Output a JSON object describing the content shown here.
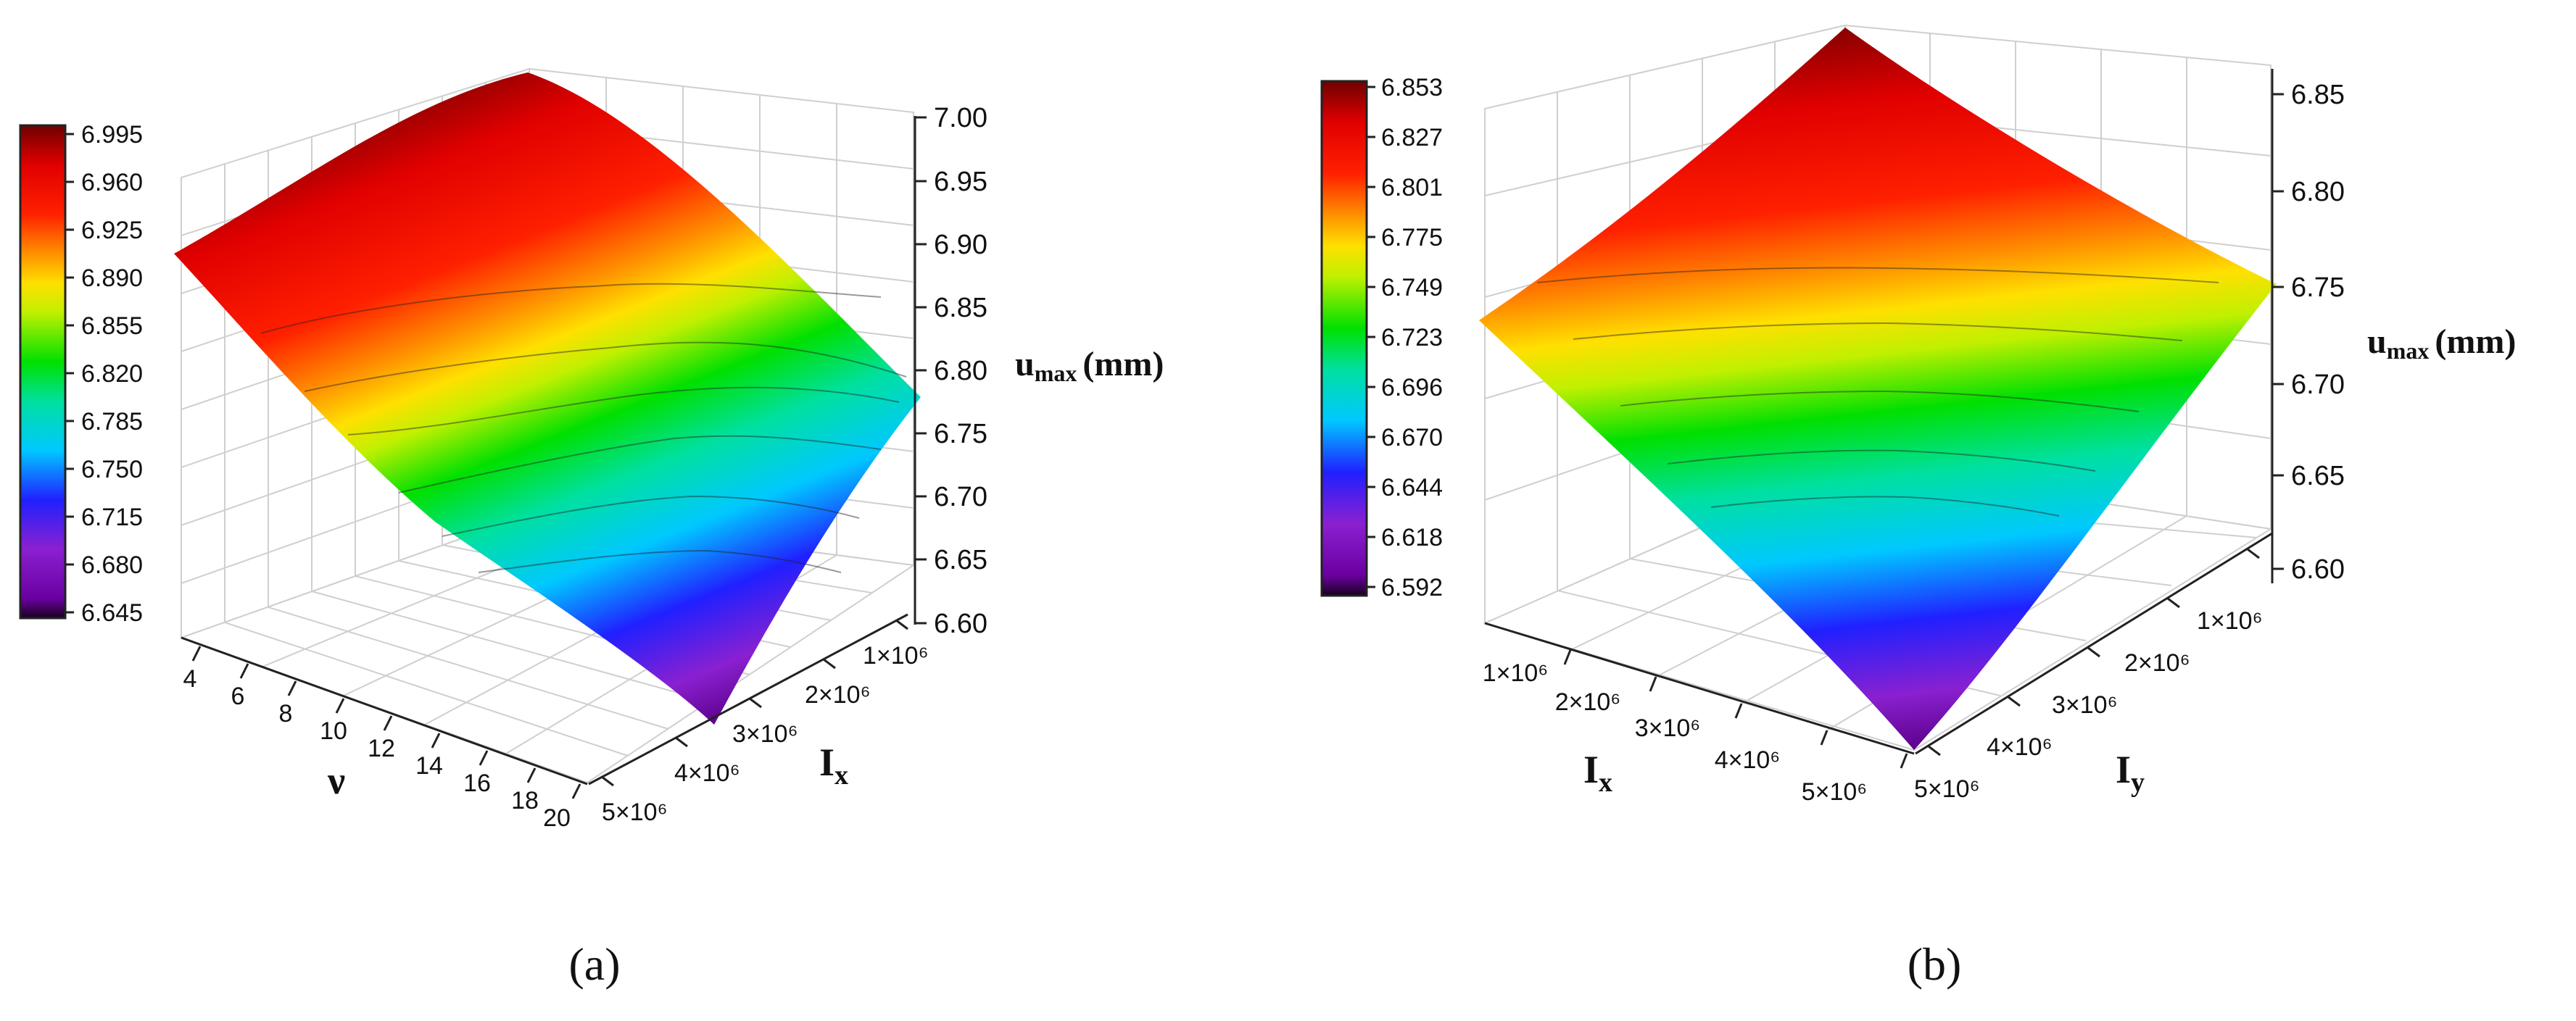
{
  "chart_data": [
    {
      "type": "surface3d",
      "panel_label": "(a)",
      "xlabel": "ν",
      "ylabel_main": "I",
      "ylabel_sub": "x",
      "zlabel_main": "u",
      "zlabel_sub": "max",
      "zlabel_unit": "(mm)",
      "x_ticks": [
        "4",
        "6",
        "8",
        "10",
        "12",
        "14",
        "16",
        "18",
        "20"
      ],
      "y_ticks": [
        "1×10⁶",
        "2×10⁶",
        "3×10⁶",
        "4×10⁶",
        "5×10⁶"
      ],
      "z_ticks": [
        "6.60",
        "6.65",
        "6.70",
        "6.75",
        "6.80",
        "6.85",
        "6.90",
        "6.95",
        "7.00"
      ],
      "colorbar_ticks": [
        "6.995",
        "6.960",
        "6.925",
        "6.890",
        "6.855",
        "6.820",
        "6.785",
        "6.750",
        "6.715",
        "6.680",
        "6.645"
      ],
      "zlim": [
        6.6,
        7.0
      ],
      "corner_values": {
        "nu_min_Ix_min": 6.9,
        "nu_max_Ix_min": 6.8,
        "nu_min_Ix_max": 7.0,
        "nu_max_Ix_max": 6.64
      },
      "grid": true
    },
    {
      "type": "surface3d",
      "panel_label": "(b)",
      "xlabel_main": "I",
      "xlabel_sub": "x",
      "ylabel_main": "I",
      "ylabel_sub": "y",
      "zlabel_main": "u",
      "zlabel_sub": "max",
      "zlabel_unit": "(mm)",
      "x_ticks": [
        "1×10⁶",
        "2×10⁶",
        "3×10⁶",
        "4×10⁶",
        "5×10⁶"
      ],
      "y_ticks": [
        "1×10⁶",
        "2×10⁶",
        "3×10⁶",
        "4×10⁶",
        "5×10⁶"
      ],
      "z_ticks": [
        "6.60",
        "6.65",
        "6.70",
        "6.75",
        "6.80",
        "6.85"
      ],
      "colorbar_ticks": [
        "6.853",
        "6.827",
        "6.801",
        "6.775",
        "6.749",
        "6.723",
        "6.696",
        "6.670",
        "6.644",
        "6.618",
        "6.592"
      ],
      "zlim": [
        6.59,
        6.86
      ],
      "corner_values": {
        "Ix_min_Iy_min": 6.86,
        "Ix_max_Iy_min": 6.75,
        "Ix_min_Iy_max": 6.74,
        "Ix_max_Iy_max": 6.59
      },
      "grid": true
    }
  ]
}
